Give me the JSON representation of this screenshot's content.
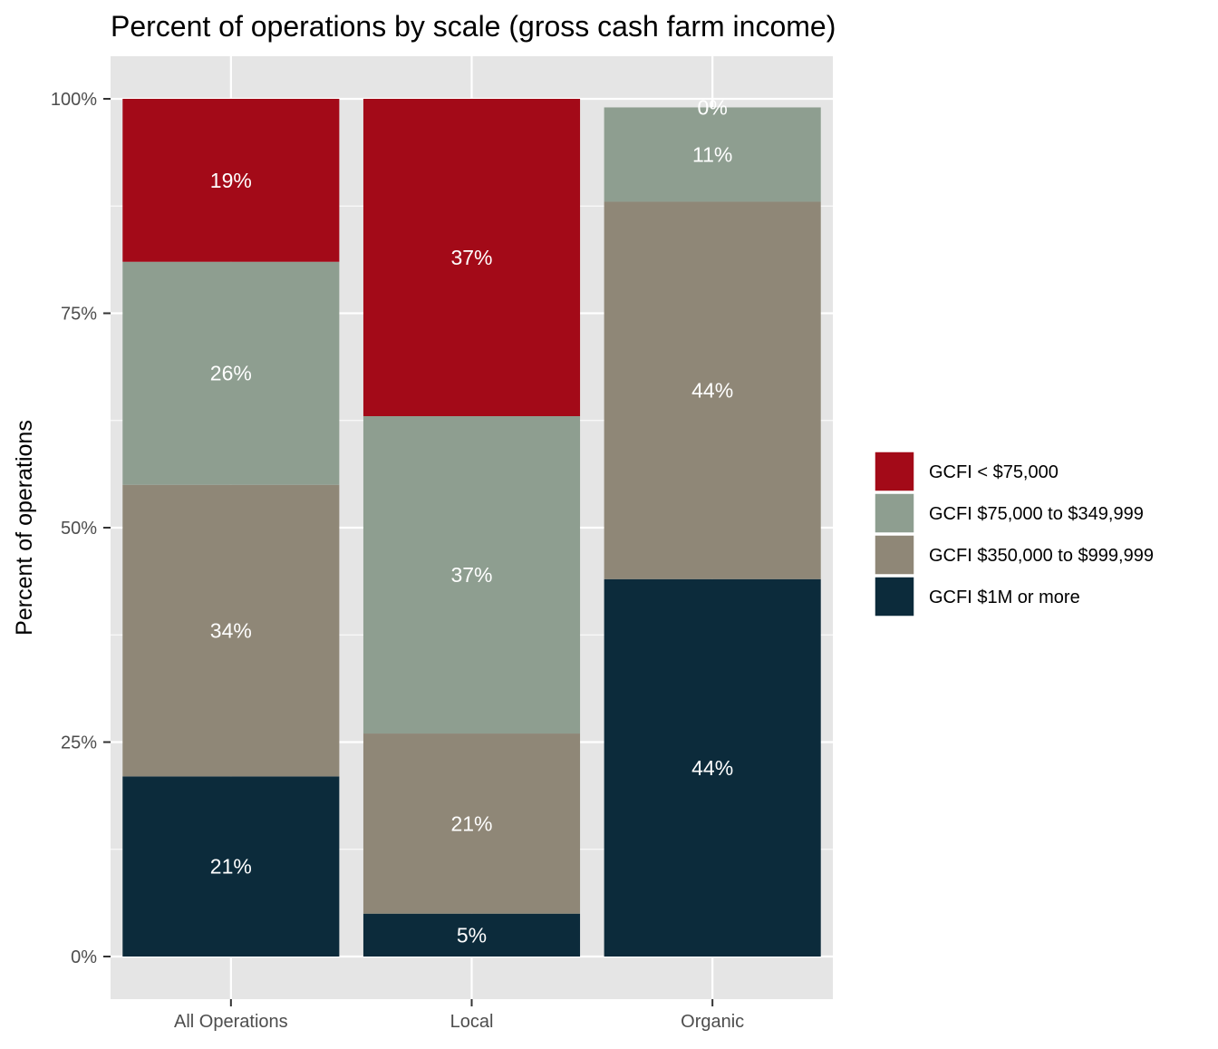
{
  "chart_data": {
    "type": "bar",
    "stacked": true,
    "title": "Percent of operations by scale (gross cash farm income)",
    "xlabel": "",
    "ylabel": "Percent of operations",
    "ylim": [
      0,
      104.7
    ],
    "y_ticks": [
      0,
      25,
      50,
      75,
      100
    ],
    "y_tick_labels": [
      "0%",
      "25%",
      "50%",
      "75%",
      "100%"
    ],
    "categories": [
      "All Operations",
      "Local",
      "Organic"
    ],
    "grid": true,
    "legend_position": "right",
    "series": [
      {
        "name": "GCFI $1M or more",
        "color": "#0c2b3b",
        "values": [
          21,
          5,
          44
        ],
        "labels": [
          "21%",
          "5%",
          "44%"
        ]
      },
      {
        "name": "GCFI $350,000 to $999,999",
        "color": "#8f8777",
        "values": [
          34,
          21,
          44
        ],
        "labels": [
          "34%",
          "21%",
          "44%"
        ]
      },
      {
        "name": "GCFI $75,000 to $349,999",
        "color": "#8e9e90",
        "values": [
          26,
          37,
          11
        ],
        "labels": [
          "26%",
          "37%",
          "11%"
        ]
      },
      {
        "name": "GCFI < $75,000",
        "color": "#a30a18",
        "values": [
          19,
          37,
          0
        ],
        "labels": [
          "19%",
          "37%",
          "0%"
        ]
      }
    ],
    "legend_order": [
      "GCFI < $75,000",
      "GCFI $75,000 to $349,999",
      "GCFI $350,000 to $999,999",
      "GCFI $1M or more"
    ],
    "panel_background": "#e5e5e5",
    "grid_color": "#ffffff"
  }
}
